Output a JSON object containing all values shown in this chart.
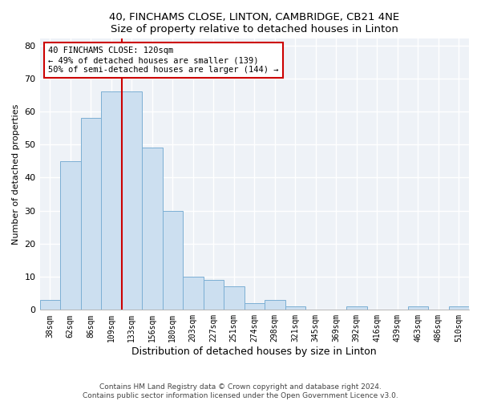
{
  "title1": "40, FINCHAMS CLOSE, LINTON, CAMBRIDGE, CB21 4NE",
  "title2": "Size of property relative to detached houses in Linton",
  "xlabel": "Distribution of detached houses by size in Linton",
  "ylabel": "Number of detached properties",
  "bar_labels": [
    "38sqm",
    "62sqm",
    "86sqm",
    "109sqm",
    "133sqm",
    "156sqm",
    "180sqm",
    "203sqm",
    "227sqm",
    "251sqm",
    "274sqm",
    "298sqm",
    "321sqm",
    "345sqm",
    "369sqm",
    "392sqm",
    "416sqm",
    "439sqm",
    "463sqm",
    "486sqm",
    "510sqm"
  ],
  "bar_values": [
    3,
    45,
    58,
    66,
    66,
    49,
    30,
    10,
    9,
    7,
    2,
    3,
    1,
    0,
    0,
    1,
    0,
    0,
    1,
    0,
    1
  ],
  "bar_color": "#ccdff0",
  "bar_edge_color": "#7bafd4",
  "vline_x": 3.5,
  "vline_color": "#cc0000",
  "annotation_text": "40 FINCHAMS CLOSE: 120sqm\n← 49% of detached houses are smaller (139)\n50% of semi-detached houses are larger (144) →",
  "annotation_box_color": "#ffffff",
  "annotation_box_edge": "#cc0000",
  "ylim": [
    0,
    82
  ],
  "yticks": [
    0,
    10,
    20,
    30,
    40,
    50,
    60,
    70,
    80
  ],
  "footer1": "Contains HM Land Registry data © Crown copyright and database right 2024.",
  "footer2": "Contains public sector information licensed under the Open Government Licence v3.0.",
  "bg_color": "#eef2f7"
}
